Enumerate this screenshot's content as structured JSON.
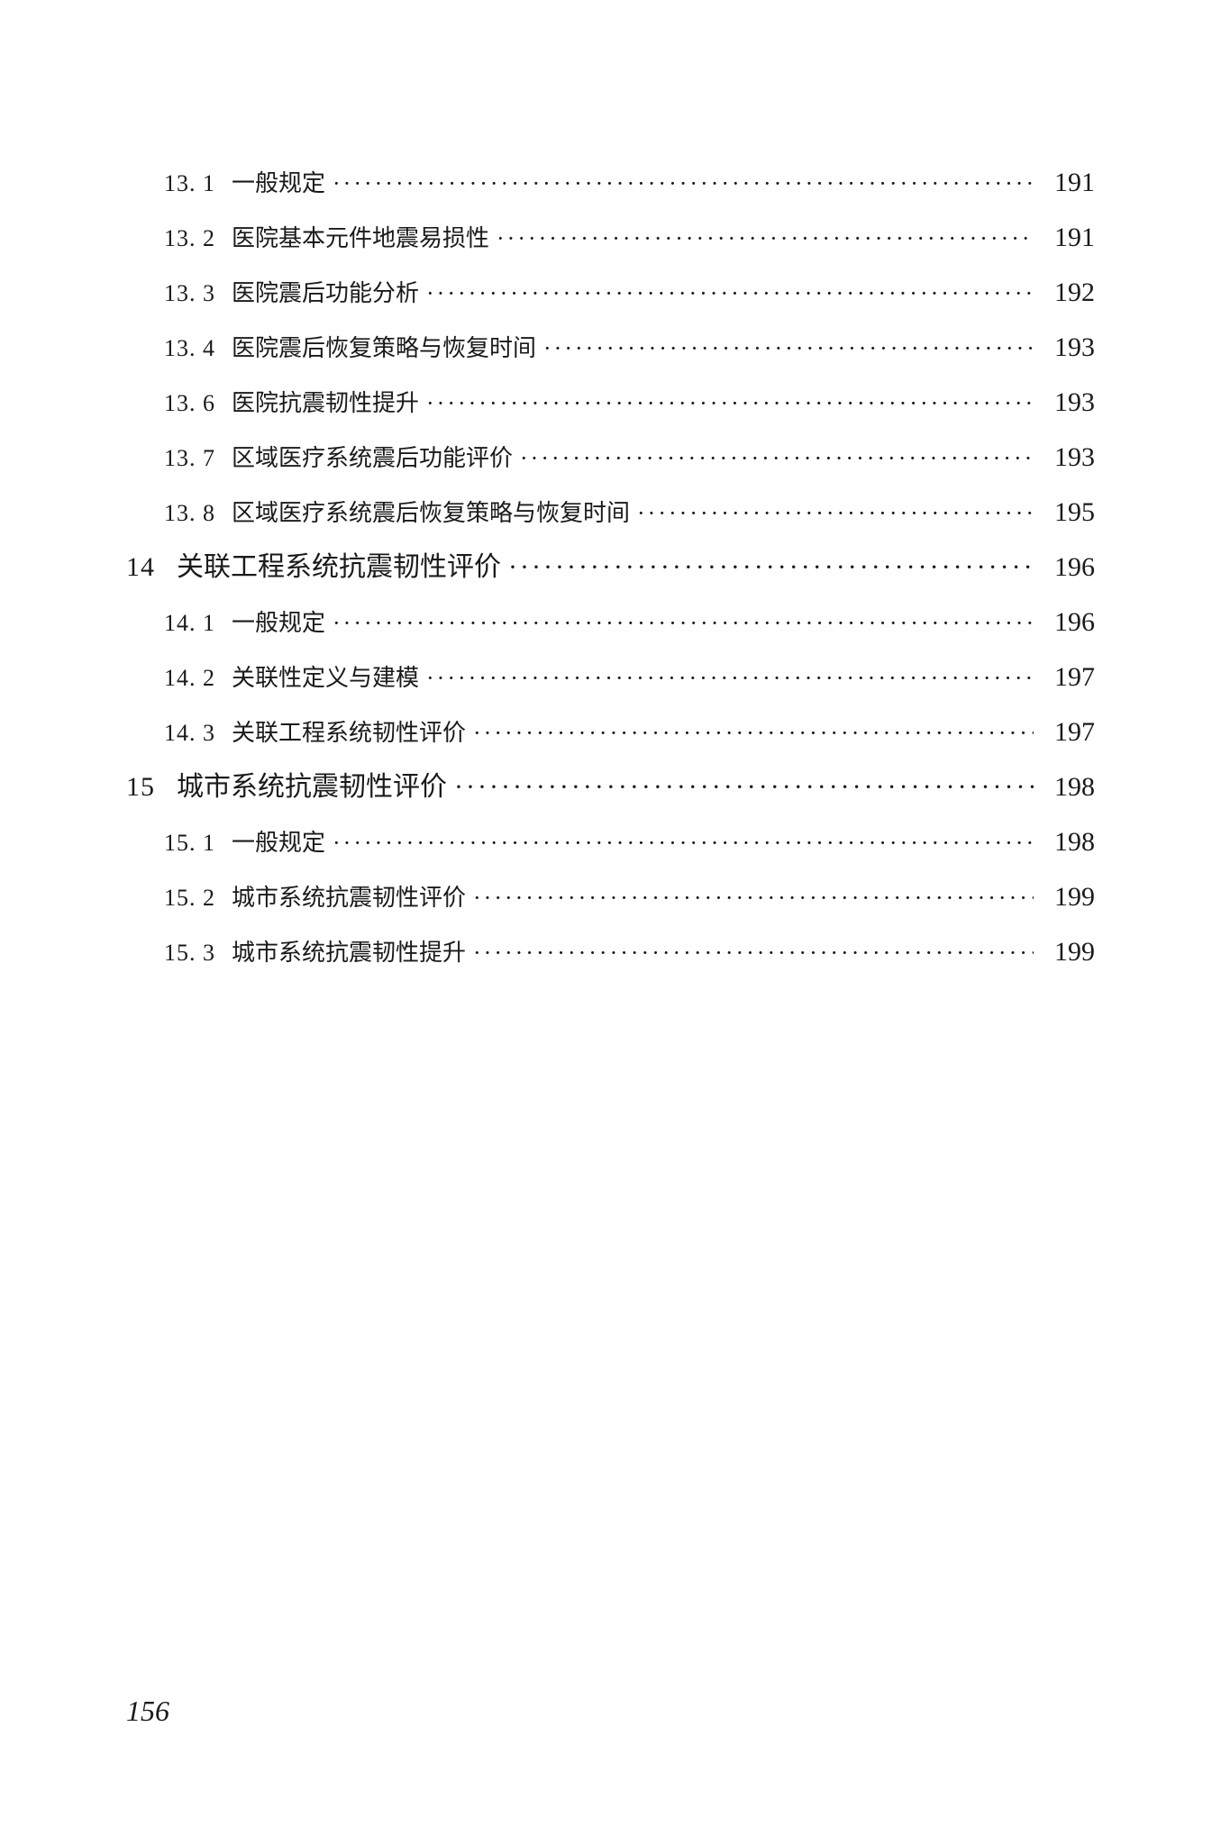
{
  "page_number": "156",
  "colors": {
    "text": "#1a1a1a",
    "background": "#ffffff"
  },
  "typography": {
    "body_fontsize": 28,
    "level1_fontsize": 30,
    "level2_fontsize": 26,
    "page_number_fontsize": 32,
    "font_family": "SimSun"
  },
  "toc_entries": [
    {
      "level": 2,
      "number": "13. 1",
      "title": "一般规定",
      "page": "191"
    },
    {
      "level": 2,
      "number": "13. 2",
      "title": "医院基本元件地震易损性",
      "page": "191"
    },
    {
      "level": 2,
      "number": "13. 3",
      "title": "医院震后功能分析",
      "page": "192"
    },
    {
      "level": 2,
      "number": "13. 4",
      "title": "医院震后恢复策略与恢复时间",
      "page": "193"
    },
    {
      "level": 2,
      "number": "13. 6",
      "title": "医院抗震韧性提升",
      "page": "193"
    },
    {
      "level": 2,
      "number": "13. 7",
      "title": "区域医疗系统震后功能评价",
      "page": "193"
    },
    {
      "level": 2,
      "number": "13. 8",
      "title": "区域医疗系统震后恢复策略与恢复时间",
      "page": "195"
    },
    {
      "level": 1,
      "number": "14",
      "title": "关联工程系统抗震韧性评价",
      "page": "196"
    },
    {
      "level": 2,
      "number": "14. 1",
      "title": "一般规定",
      "page": "196"
    },
    {
      "level": 2,
      "number": "14. 2",
      "title": "关联性定义与建模",
      "page": "197"
    },
    {
      "level": 2,
      "number": "14. 3",
      "title": "关联工程系统韧性评价",
      "page": "197"
    },
    {
      "level": 1,
      "number": "15",
      "title": "城市系统抗震韧性评价",
      "page": "198"
    },
    {
      "level": 2,
      "number": "15. 1",
      "title": "一般规定",
      "page": "198"
    },
    {
      "level": 2,
      "number": "15. 2",
      "title": "城市系统抗震韧性评价",
      "page": "199"
    },
    {
      "level": 2,
      "number": "15. 3",
      "title": "城市系统抗震韧性提升",
      "page": "199"
    }
  ]
}
